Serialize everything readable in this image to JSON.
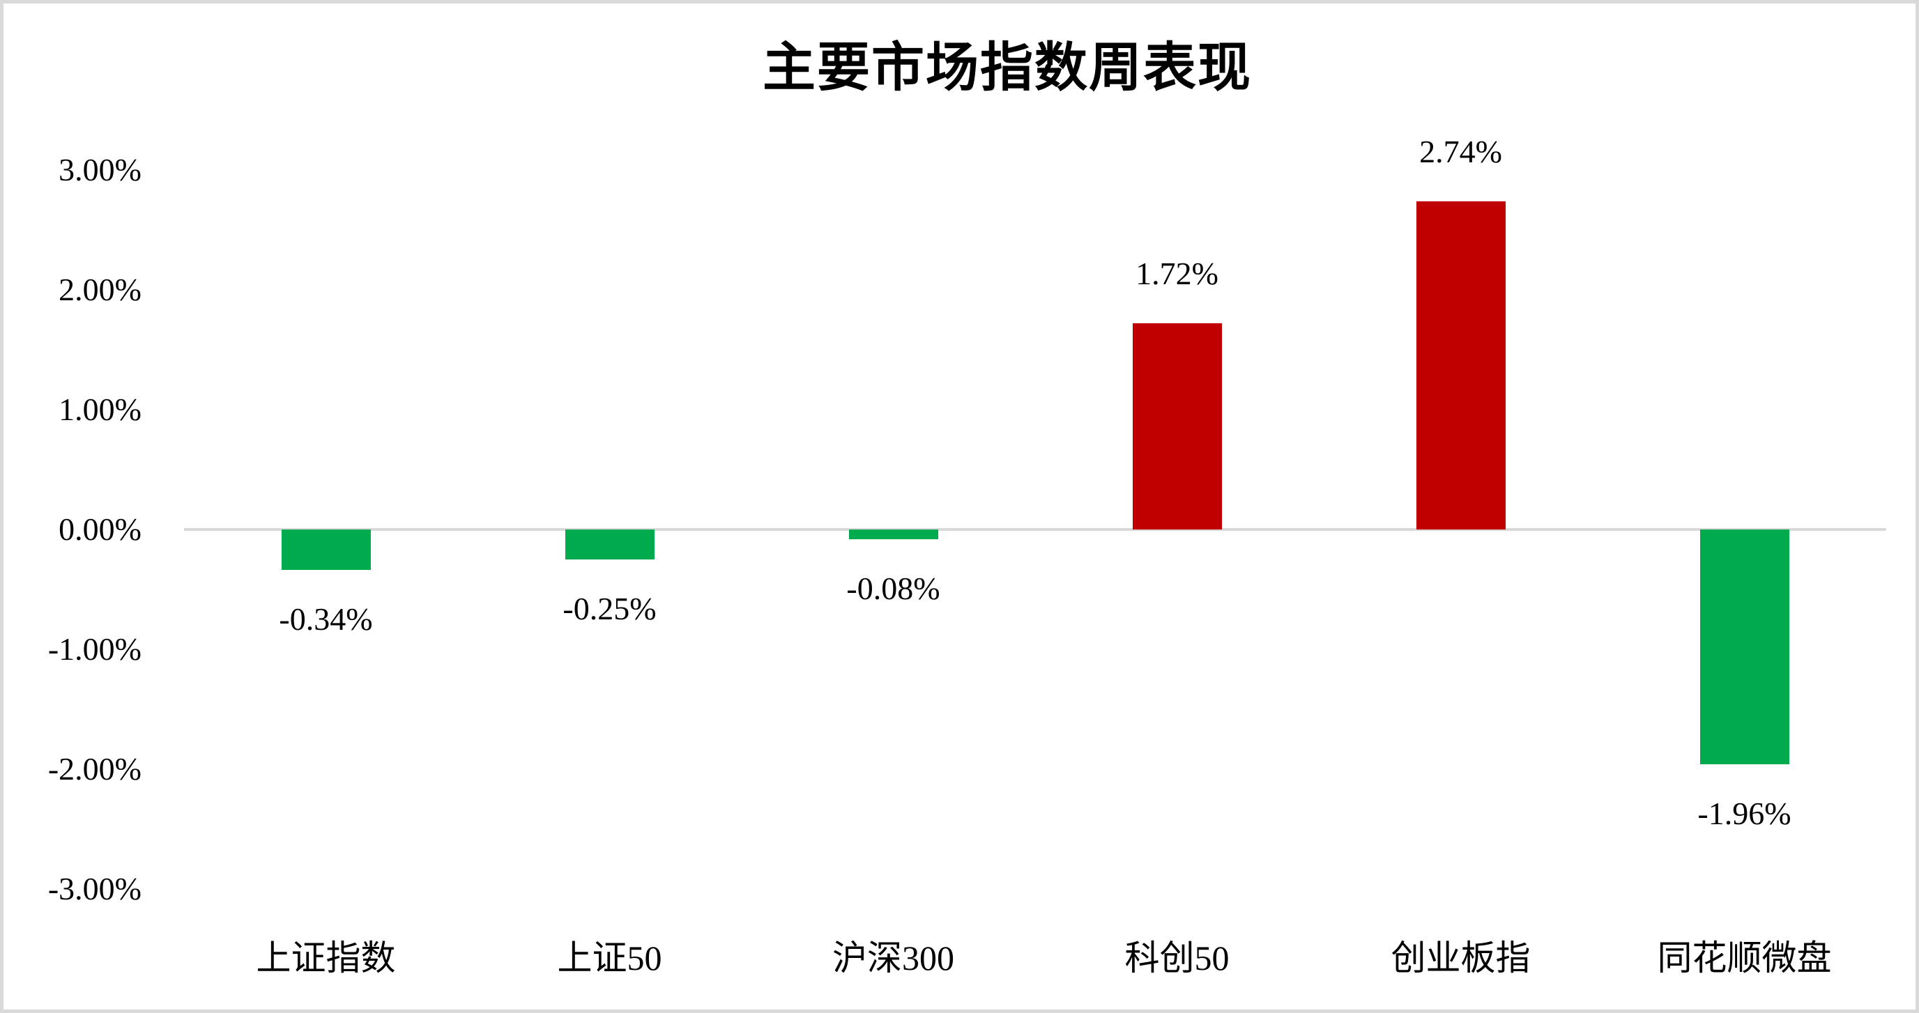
{
  "chart_data": {
    "type": "bar",
    "title": "主要市场指数周表现",
    "categories": [
      "上证指数",
      "上证50",
      "沪深300",
      "科创50",
      "创业板指",
      "同花顺微盘"
    ],
    "values": [
      -0.34,
      -0.25,
      -0.08,
      1.72,
      2.74,
      -1.96
    ],
    "data_labels": [
      "-0.34%",
      "-0.25%",
      "-0.08%",
      "1.72%",
      "2.74%",
      "-1.96%"
    ],
    "xlabel": "",
    "ylabel": "",
    "ylim": [
      -3,
      3
    ],
    "ytick_step": 1,
    "y_ticks": [
      {
        "value": 3,
        "label": "3.00%"
      },
      {
        "value": 2,
        "label": "2.00%"
      },
      {
        "value": 1,
        "label": "1.00%"
      },
      {
        "value": 0,
        "label": "0.00%"
      },
      {
        "value": -1,
        "label": "-1.00%"
      },
      {
        "value": -2,
        "label": "-2.00%"
      },
      {
        "value": -3,
        "label": "-3.00%"
      }
    ],
    "grid": false,
    "legend": false,
    "positive_color": "#c00000",
    "negative_color": "#00ab4e",
    "axis_line_color": "#d9d9d9",
    "border_color": "#d9d9d9",
    "background_color": "#ffffff",
    "text_color": "#000000"
  }
}
